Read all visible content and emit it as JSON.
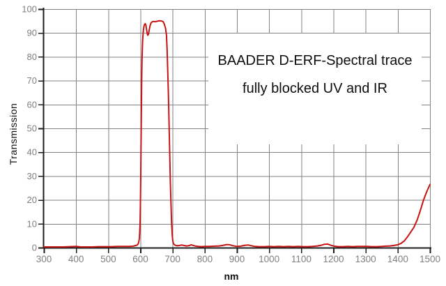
{
  "colors": {
    "background": "#ffffff",
    "grid": "#828282",
    "axis": "#1c1c1c",
    "tick": "#1c1c1c",
    "tick_label": "#7f7f7f",
    "curve": "#c81313",
    "annotation_text": "#0d0d0d"
  },
  "chart_data": {
    "type": "line",
    "title": "BAADER D-ERF-Spectral trace",
    "subtitle": "fully blocked UV and IR",
    "xlabel": "nm",
    "ylabel": "Transmission",
    "xlim": [
      300,
      1500
    ],
    "ylim": [
      0,
      100
    ],
    "x_ticks": [
      300,
      400,
      500,
      600,
      700,
      800,
      900,
      1000,
      1100,
      1200,
      1300,
      1400,
      1500
    ],
    "y_ticks": [
      0,
      10,
      20,
      30,
      40,
      50,
      60,
      70,
      80,
      90,
      100
    ],
    "grid": true,
    "legend": "none",
    "series": [
      {
        "name": "transmission",
        "color": "#c81313",
        "points": [
          [
            300,
            0.3
          ],
          [
            320,
            0.3
          ],
          [
            340,
            0.3
          ],
          [
            360,
            0.3
          ],
          [
            380,
            0.4
          ],
          [
            400,
            0.5
          ],
          [
            415,
            0.3
          ],
          [
            430,
            0.3
          ],
          [
            450,
            0.3
          ],
          [
            470,
            0.4
          ],
          [
            490,
            0.4
          ],
          [
            510,
            0.4
          ],
          [
            530,
            0.5
          ],
          [
            550,
            0.5
          ],
          [
            565,
            0.5
          ],
          [
            578,
            0.6
          ],
          [
            586,
            0.9
          ],
          [
            591,
            1.2
          ],
          [
            594,
            1.8
          ],
          [
            597,
            4
          ],
          [
            599,
            10
          ],
          [
            600,
            18
          ],
          [
            601,
            30
          ],
          [
            602,
            44
          ],
          [
            603,
            58
          ],
          [
            604,
            70
          ],
          [
            605,
            79
          ],
          [
            607,
            87
          ],
          [
            609,
            91
          ],
          [
            611,
            92.8
          ],
          [
            613,
            93.6
          ],
          [
            615,
            93.9
          ],
          [
            617,
            93.4
          ],
          [
            619,
            91.5
          ],
          [
            621,
            89.8
          ],
          [
            623,
            89
          ],
          [
            625,
            89.4
          ],
          [
            627,
            91
          ],
          [
            630,
            93
          ],
          [
            633,
            94.2
          ],
          [
            636,
            94.6
          ],
          [
            640,
            94.8
          ],
          [
            645,
            94.7
          ],
          [
            650,
            94.8
          ],
          [
            655,
            95
          ],
          [
            660,
            95.1
          ],
          [
            665,
            95
          ],
          [
            670,
            94.8
          ],
          [
            674,
            93.8
          ],
          [
            678,
            92
          ],
          [
            681,
            89
          ],
          [
            683,
            83
          ],
          [
            685,
            74
          ],
          [
            687,
            64
          ],
          [
            689,
            52
          ],
          [
            691,
            40
          ],
          [
            693,
            28
          ],
          [
            695,
            18
          ],
          [
            697,
            10
          ],
          [
            699,
            5
          ],
          [
            701,
            2.5
          ],
          [
            703,
            1.6
          ],
          [
            706,
            1.2
          ],
          [
            710,
            0.9
          ],
          [
            715,
            0.8
          ],
          [
            722,
            0.9
          ],
          [
            728,
            1.1
          ],
          [
            735,
            0.9
          ],
          [
            742,
            0.7
          ],
          [
            750,
            0.8
          ],
          [
            758,
            1.2
          ],
          [
            765,
            0.9
          ],
          [
            772,
            0.6
          ],
          [
            780,
            0.5
          ],
          [
            790,
            0.4
          ],
          [
            800,
            0.5
          ],
          [
            815,
            0.5
          ],
          [
            830,
            0.6
          ],
          [
            845,
            0.7
          ],
          [
            858,
            1
          ],
          [
            868,
            1.3
          ],
          [
            878,
            1.2
          ],
          [
            888,
            0.8
          ],
          [
            900,
            0.5
          ],
          [
            912,
            0.6
          ],
          [
            925,
            1
          ],
          [
            935,
            1.1
          ],
          [
            945,
            0.8
          ],
          [
            955,
            0.5
          ],
          [
            970,
            0.4
          ],
          [
            985,
            0.4
          ],
          [
            1000,
            0.5
          ],
          [
            1015,
            0.4
          ],
          [
            1030,
            0.5
          ],
          [
            1045,
            0.4
          ],
          [
            1060,
            0.5
          ],
          [
            1075,
            0.4
          ],
          [
            1090,
            0.5
          ],
          [
            1105,
            0.4
          ],
          [
            1120,
            0.4
          ],
          [
            1135,
            0.5
          ],
          [
            1150,
            0.7
          ],
          [
            1162,
            1
          ],
          [
            1172,
            1.4
          ],
          [
            1182,
            1.5
          ],
          [
            1192,
            1
          ],
          [
            1202,
            0.6
          ],
          [
            1215,
            0.4
          ],
          [
            1230,
            0.4
          ],
          [
            1245,
            0.5
          ],
          [
            1260,
            0.4
          ],
          [
            1275,
            0.5
          ],
          [
            1290,
            0.5
          ],
          [
            1305,
            0.5
          ],
          [
            1320,
            0.4
          ],
          [
            1335,
            0.4
          ],
          [
            1350,
            0.5
          ],
          [
            1362,
            0.6
          ],
          [
            1375,
            0.7
          ],
          [
            1388,
            0.9
          ],
          [
            1400,
            1.2
          ],
          [
            1410,
            1.8
          ],
          [
            1420,
            2.8
          ],
          [
            1430,
            4.5
          ],
          [
            1440,
            6.5
          ],
          [
            1450,
            8.5
          ],
          [
            1460,
            11.5
          ],
          [
            1470,
            15.5
          ],
          [
            1480,
            20
          ],
          [
            1490,
            23.5
          ],
          [
            1500,
            26.5
          ]
        ]
      }
    ]
  }
}
